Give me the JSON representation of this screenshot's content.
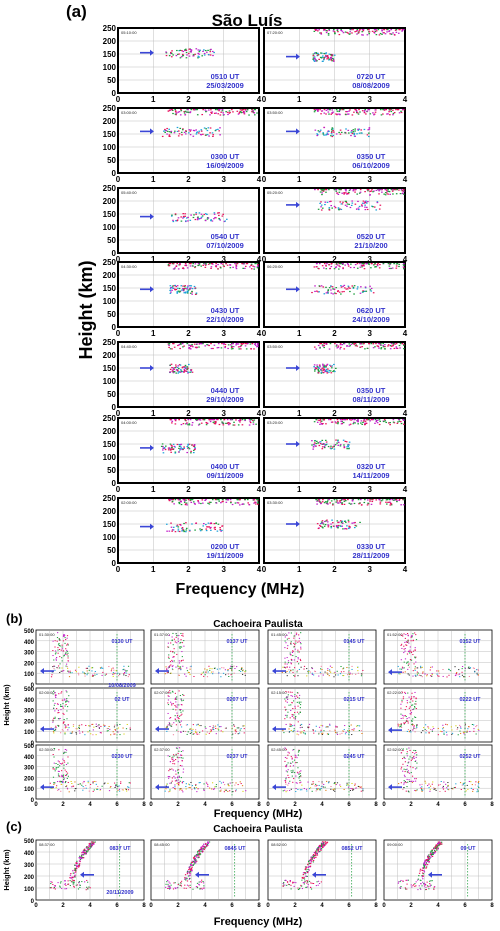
{
  "colors": {
    "frame": "#000000",
    "grid": "#bfbfbf",
    "label": "#3333cc",
    "arrow": "#3a46d6",
    "dots": [
      "#e8105a",
      "#1a9c3a",
      "#c01cc8",
      "#1aa0d8",
      "#333333",
      "#e07a10",
      "#d8d010",
      "#f080a0"
    ]
  },
  "sections": [
    {
      "letter": "(a)",
      "title": "São Luís",
      "ylabel": "Height (km)",
      "xlabel": "Frequency (MHz)",
      "yticks": [
        "250",
        "200",
        "150",
        "100",
        "50",
        "0"
      ],
      "xticks": [
        "0",
        "1",
        "2",
        "3",
        "4"
      ]
    },
    {
      "letter": "(b)",
      "title": "Cachoeira Paulista",
      "ylabel": "Height (km)",
      "xlabel": "Frequency (MHz)",
      "yticks": [
        "500",
        "400",
        "300",
        "200",
        "100",
        "0"
      ],
      "xticks": [
        "0",
        "2",
        "4",
        "6",
        "8"
      ]
    },
    {
      "letter": "(c)",
      "title": "Cachoeira Paulista",
      "ylabel": "Height (km)",
      "xlabel": "Frequency (MHz)",
      "yticks": [
        "500",
        "400",
        "300",
        "200",
        "100",
        "0"
      ],
      "xticks": [
        "0",
        "2",
        "4",
        "6",
        "8"
      ]
    }
  ],
  "chart_data": [
    {
      "type": "scatter",
      "title": "São Luís",
      "xlabel": "Frequency (MHz)",
      "ylabel": "Height (km)",
      "xlim": [
        0,
        4
      ],
      "ylim": [
        0,
        250
      ],
      "panels": [
        {
          "stamp": "05:10:00",
          "time": "0510 UT",
          "date": "25/03/2009",
          "arrow_height_km": 155
        },
        {
          "stamp": "07:20:00",
          "time": "0720 UT",
          "date": "08/08/2009",
          "arrow_height_km": 140
        },
        {
          "stamp": "03:00:00",
          "time": "0300 UT",
          "date": "16/09/2009",
          "arrow_height_km": 160
        },
        {
          "stamp": "03:50:00",
          "time": "0350 UT",
          "date": "06/10/2009",
          "arrow_height_km": 160
        },
        {
          "stamp": "05:40:00",
          "time": "0540 UT",
          "date": "07/10/2009",
          "arrow_height_km": 140
        },
        {
          "stamp": "05:20:00",
          "time": "0520 UT",
          "date": "21/10/200",
          "arrow_height_km": 185
        },
        {
          "stamp": "04:30:00",
          "time": "0430 UT",
          "date": "22/10/2009",
          "arrow_height_km": 145
        },
        {
          "stamp": "06:20:00",
          "time": "0620 UT",
          "date": "24/10/2009",
          "arrow_height_km": 145
        },
        {
          "stamp": "04:40:00",
          "time": "0440 UT",
          "date": "29/10/2009",
          "arrow_height_km": 150
        },
        {
          "stamp": "03:50:00",
          "time": "0350 UT",
          "date": "08/11/2009",
          "arrow_height_km": 150
        },
        {
          "stamp": "04:00:00",
          "time": "0400 UT",
          "date": "09/11/2009",
          "arrow_height_km": 135
        },
        {
          "stamp": "03:20:00",
          "time": "0320 UT",
          "date": "14/11/2009",
          "arrow_height_km": 150
        },
        {
          "stamp": "02:00:00",
          "time": "0200 UT",
          "date": "19/11/2009",
          "arrow_height_km": 140
        },
        {
          "stamp": "03:30:00",
          "time": "0330 UT",
          "date": "28/11/2009",
          "arrow_height_km": 150
        }
      ]
    },
    {
      "type": "scatter",
      "title": "Cachoeira Paulista",
      "xlabel": "Frequency (MHz)",
      "ylabel": "Height (km)",
      "xlim": [
        0,
        8
      ],
      "ylim": [
        0,
        500
      ],
      "panels": [
        {
          "stamp": "01:30:00",
          "time": "0130 UT",
          "date": "10/08/2009",
          "arrow_height_km": 120
        },
        {
          "stamp": "01:37:00",
          "time": "0137 UT",
          "date": "",
          "arrow_height_km": 120
        },
        {
          "stamp": "01:45:00",
          "time": "0145 UT",
          "date": "",
          "arrow_height_km": 120
        },
        {
          "stamp": "01:52:00",
          "time": "0152 UT",
          "date": "",
          "arrow_height_km": 110
        },
        {
          "stamp": "02:00:00",
          "time": "02 UT",
          "date": "",
          "arrow_height_km": 120
        },
        {
          "stamp": "02:07:00",
          "time": "0207 UT",
          "date": "",
          "arrow_height_km": 120
        },
        {
          "stamp": "02:15:00",
          "time": "0215 UT",
          "date": "",
          "arrow_height_km": 120
        },
        {
          "stamp": "02:22:00",
          "time": "0222 UT",
          "date": "",
          "arrow_height_km": 110
        },
        {
          "stamp": "02:30:00",
          "time": "0230 UT",
          "date": "",
          "arrow_height_km": 110
        },
        {
          "stamp": "02:37:00",
          "time": "0237 UT",
          "date": "",
          "arrow_height_km": 110
        },
        {
          "stamp": "02:45:00",
          "time": "0245 UT",
          "date": "",
          "arrow_height_km": 110
        },
        {
          "stamp": "02:52:00",
          "time": "0252 UT",
          "date": "",
          "arrow_height_km": 110
        }
      ]
    },
    {
      "type": "scatter",
      "title": "Cachoeira Paulista",
      "xlabel": "Frequency (MHz)",
      "ylabel": "Height (km)",
      "xlim": [
        0,
        8
      ],
      "ylim": [
        0,
        500
      ],
      "panels": [
        {
          "stamp": "08:37:00",
          "time": "0837 UT",
          "date": "20/11/2009",
          "arrow_height_km": 210
        },
        {
          "stamp": "08:45:00",
          "time": "0845 UT",
          "date": "",
          "arrow_height_km": 210
        },
        {
          "stamp": "08:52:00",
          "time": "0852 UT",
          "date": "",
          "arrow_height_km": 210
        },
        {
          "stamp": "09:00:00",
          "time": "09 UT",
          "date": "",
          "arrow_height_km": 210
        }
      ]
    }
  ]
}
